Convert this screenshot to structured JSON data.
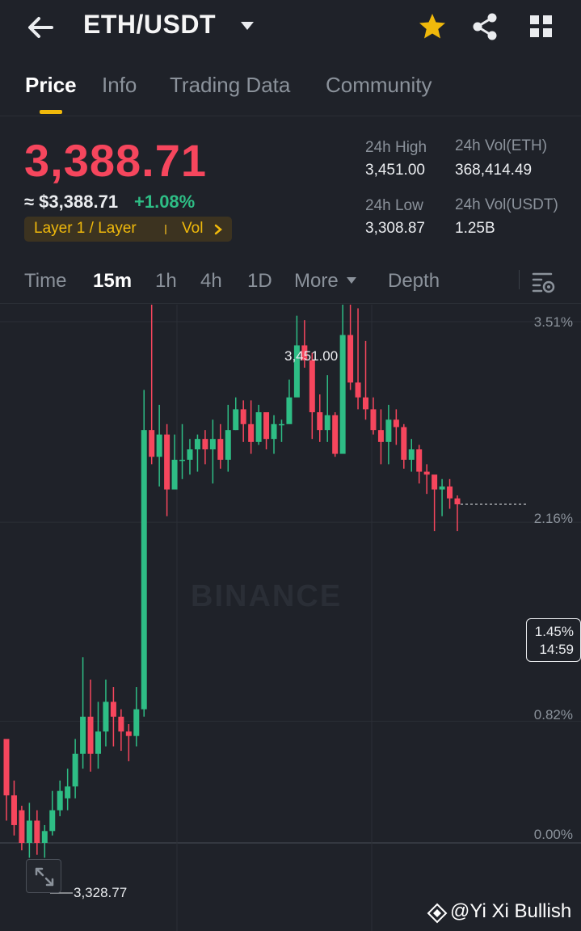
{
  "header": {
    "pair": "ETH/USDT",
    "icons": [
      "back-arrow-icon",
      "caret-down-icon",
      "star-icon",
      "share-icon",
      "grid-icon"
    ],
    "star_color": "#f0b90b"
  },
  "tabs": [
    {
      "label": "Price",
      "active": true
    },
    {
      "label": "Info",
      "active": false
    },
    {
      "label": "Trading Data",
      "active": false
    },
    {
      "label": "Community",
      "active": false
    }
  ],
  "ticker": {
    "last_price": "3,388.71",
    "fiat_price": "≈ $3,388.71",
    "change": "+1.08%",
    "tag": "Layer 1 / Layer",
    "tag_vol": "Vol",
    "high_label": "24h High",
    "high_value": "3,451.00",
    "low_label": "24h Low",
    "low_value": "3,308.87",
    "vol_base_label": "24h Vol(ETH)",
    "vol_base_value": "368,414.49",
    "vol_quote_label": "24h Vol(USDT)",
    "vol_quote_value": "1.25B",
    "down_color": "#f6465d",
    "up_color": "#2ebd85"
  },
  "intervals": {
    "time": "Time",
    "m15": "15m",
    "h1": "1h",
    "h4": "4h",
    "d1": "1D",
    "more": "More",
    "depth": "Depth"
  },
  "chart": {
    "watermark": "BINANCE",
    "high_marker": "3,451.00",
    "low_marker": "3,328.77",
    "current_pct": "1.45%",
    "countdown": "14:59",
    "credit": "@Yi Xi Bullish"
  },
  "chart_data": {
    "type": "candlestick",
    "interval": "15m",
    "y_axis_labels": [
      "3.51%",
      "2.16%",
      "0.82%",
      "0.00%"
    ],
    "y_axis_values_pct": [
      3.51,
      2.16,
      0.82,
      0.0
    ],
    "annotations": {
      "high": 3451.0,
      "low": 3328.77,
      "last_change_pct": 1.45
    },
    "candles_pct": [
      [
        0.7,
        0.32,
        0.38,
        0.15
      ],
      [
        0.32,
        0.12,
        0.42,
        0.05
      ],
      [
        0.22,
        0.0,
        0.25,
        -0.05
      ],
      [
        0.0,
        0.15,
        0.27,
        -0.1
      ],
      [
        0.15,
        0.0,
        0.22,
        -0.08
      ],
      [
        0.0,
        0.08,
        0.12,
        -0.1
      ],
      [
        0.08,
        0.22,
        0.35,
        0.05
      ],
      [
        0.22,
        0.35,
        0.42,
        0.18
      ],
      [
        0.3,
        0.38,
        0.5,
        0.22
      ],
      [
        0.38,
        0.6,
        0.7,
        0.3
      ],
      [
        0.6,
        0.85,
        1.25,
        0.5
      ],
      [
        0.85,
        0.6,
        1.1,
        0.48
      ],
      [
        0.6,
        0.75,
        0.95,
        0.5
      ],
      [
        0.75,
        0.95,
        1.1,
        0.65
      ],
      [
        0.95,
        0.85,
        1.05,
        0.65
      ],
      [
        0.85,
        0.75,
        0.9,
        0.62
      ],
      [
        0.75,
        0.72,
        0.8,
        0.55
      ],
      [
        0.72,
        0.9,
        1.05,
        0.65
      ],
      [
        0.9,
        2.78,
        3.05,
        0.85
      ],
      [
        2.78,
        2.6,
        3.73,
        2.55
      ],
      [
        2.6,
        2.75,
        2.95,
        2.4
      ],
      [
        2.75,
        2.38,
        2.82,
        2.2
      ],
      [
        2.38,
        2.58,
        2.75,
        2.42
      ],
      [
        2.58,
        2.58,
        2.82,
        2.45
      ],
      [
        2.58,
        2.65,
        2.72,
        2.48
      ],
      [
        2.65,
        2.72,
        2.75,
        2.5
      ],
      [
        2.72,
        2.65,
        2.78,
        2.55
      ],
      [
        2.65,
        2.72,
        2.85,
        2.42
      ],
      [
        2.72,
        2.58,
        2.82,
        2.52
      ],
      [
        2.58,
        2.78,
        2.95,
        2.5
      ],
      [
        2.78,
        2.92,
        3.0,
        2.78
      ],
      [
        2.92,
        2.82,
        2.98,
        2.7
      ],
      [
        2.82,
        2.7,
        2.98,
        2.62
      ],
      [
        2.7,
        2.9,
        2.95,
        2.68
      ],
      [
        2.9,
        2.72,
        2.85,
        2.65
      ],
      [
        2.72,
        2.82,
        2.88,
        2.62
      ],
      [
        2.82,
        2.82,
        2.85,
        2.7
      ],
      [
        2.82,
        3.0,
        3.12,
        2.88
      ],
      [
        3.0,
        3.35,
        3.55,
        3.05
      ],
      [
        3.35,
        3.25,
        3.52,
        3.2
      ],
      [
        3.25,
        2.9,
        3.3,
        2.72
      ],
      [
        2.9,
        2.78,
        3.02,
        2.7
      ],
      [
        2.78,
        2.88,
        3.15,
        2.7
      ],
      [
        2.88,
        2.62,
        2.9,
        2.6
      ],
      [
        2.62,
        3.42,
        3.7,
        3.42
      ],
      [
        3.42,
        3.1,
        3.72,
        3.05
      ],
      [
        3.1,
        3.0,
        3.6,
        2.92
      ],
      [
        3.0,
        2.92,
        3.38,
        2.85
      ],
      [
        2.92,
        2.78,
        3.0,
        2.75
      ],
      [
        2.78,
        2.7,
        2.92,
        2.55
      ],
      [
        2.7,
        2.85,
        2.95,
        2.55
      ],
      [
        2.85,
        2.8,
        2.92,
        2.68
      ],
      [
        2.8,
        2.58,
        2.82,
        2.52
      ],
      [
        2.58,
        2.65,
        2.72,
        2.5
      ],
      [
        2.65,
        2.5,
        2.68,
        2.42
      ],
      [
        2.5,
        2.48,
        2.55,
        2.35
      ],
      [
        2.48,
        2.38,
        2.42,
        2.1
      ],
      [
        2.38,
        2.4,
        2.45,
        2.2
      ],
      [
        2.4,
        2.32,
        2.45,
        2.25
      ],
      [
        2.32,
        2.28,
        2.34,
        2.1
      ]
    ]
  }
}
